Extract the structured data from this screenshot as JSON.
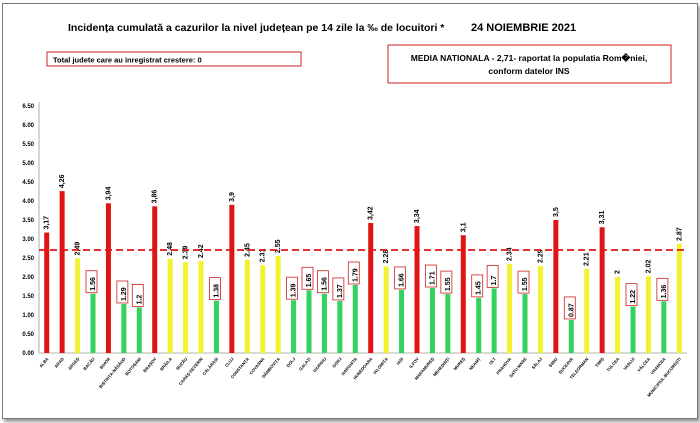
{
  "header": {
    "title": "Incidența cumulată a cazurilor la nivel județean pe 14 zile la ‰ de locuitori *",
    "date": "24 NOIEMBRIE 2021"
  },
  "info_box": {
    "text": "Total judete care au inregistrat crestere: 0"
  },
  "national_box": {
    "line1": "MEDIA NATIONALA - 2,71-  raportat la populatia Rom�niei,",
    "line2": "conform datelor INS"
  },
  "colors": {
    "red": "#e01414",
    "yellow": "#f2f230",
    "green": "#33d35e",
    "reference": "#e01414",
    "label_box": "#cc2222"
  },
  "chart_data": {
    "type": "bar",
    "ylim": [
      0,
      6.5
    ],
    "yticks": [
      "0.00",
      "0.50",
      "1.00",
      "1.50",
      "2.00",
      "2.50",
      "3.00",
      "3.50",
      "4.00",
      "4.50",
      "5.00",
      "5.50",
      "6.00",
      "6.50"
    ],
    "reference_line": {
      "value": 2.71,
      "style": "dashed"
    },
    "categories": [
      "ALBA",
      "ARAD",
      "ARGEȘ",
      "BACĂU",
      "BIHOR",
      "BISTRIȚA-NĂSĂUD",
      "BOTOȘANI",
      "BRAȘOV",
      "BRĂILA",
      "BUZĂU",
      "CARAȘ-SEVERIN",
      "CĂLĂRAȘI",
      "CLUJ",
      "CONSTANȚA",
      "COVASNA",
      "DÂMBOVIȚA",
      "DOLJ",
      "GALAȚI",
      "GIURGIU",
      "GORJ",
      "HARGHITA",
      "HUNEDOARA",
      "IALOMIȚA",
      "IAȘI",
      "ILFOV",
      "MARAMUREȘ",
      "MEHEDINȚI",
      "MUREȘ",
      "NEAMȚ",
      "OLT",
      "PRAHOVA",
      "SATU MARE",
      "SĂLAJ",
      "SIBIU",
      "SUCEAVA",
      "TELEORMAN",
      "TIMIȘ",
      "TULCEA",
      "VASLUI",
      "VÂLCEA",
      "VRANCEA",
      "MUNICIPIUL BUCUREȘTI"
    ],
    "values": [
      3.17,
      4.26,
      2.49,
      1.56,
      3.94,
      1.29,
      1.2,
      3.86,
      2.48,
      2.39,
      2.42,
      1.38,
      3.9,
      2.45,
      2.31,
      2.55,
      1.39,
      1.65,
      1.56,
      1.37,
      1.79,
      3.42,
      2.28,
      1.66,
      3.34,
      1.71,
      1.55,
      3.1,
      1.45,
      1.7,
      2.34,
      1.55,
      2.29,
      3.5,
      0.87,
      2.21,
      3.31,
      2,
      1.22,
      2.02,
      1.36,
      2.87
    ],
    "labels": [
      "3,17",
      "4,26",
      "2,49",
      "1.56",
      "3,94",
      "1.29",
      "1.2",
      "3,86",
      "2.48",
      "2.39",
      "2.42",
      "1.38",
      "3,9",
      "2.45",
      "2.31",
      "2.55",
      "1.39",
      "1.65",
      "1.56",
      "1.37",
      "1.79",
      "3,42",
      "2.28",
      "1.66",
      "3,34",
      "1.71",
      "1.55",
      "3,1",
      "1.45",
      "1.7",
      "2.34",
      "1.55",
      "2.29",
      "3,5",
      "0.87",
      "2.21",
      "3,31",
      "2",
      "1.22",
      "2.02",
      "1.36",
      "2.87"
    ],
    "colors": [
      "red",
      "red",
      "yellow",
      "green",
      "red",
      "green",
      "green",
      "red",
      "yellow",
      "yellow",
      "yellow",
      "green",
      "red",
      "yellow",
      "yellow",
      "yellow",
      "green",
      "green",
      "green",
      "green",
      "green",
      "red",
      "yellow",
      "green",
      "red",
      "green",
      "green",
      "red",
      "green",
      "green",
      "yellow",
      "green",
      "yellow",
      "red",
      "green",
      "yellow",
      "red",
      "yellow",
      "green",
      "yellow",
      "green",
      "yellow"
    ],
    "boxed_labels": [
      3,
      5,
      6,
      11,
      16,
      17,
      18,
      19,
      20,
      23,
      25,
      26,
      28,
      29,
      31,
      34,
      38,
      40
    ]
  }
}
